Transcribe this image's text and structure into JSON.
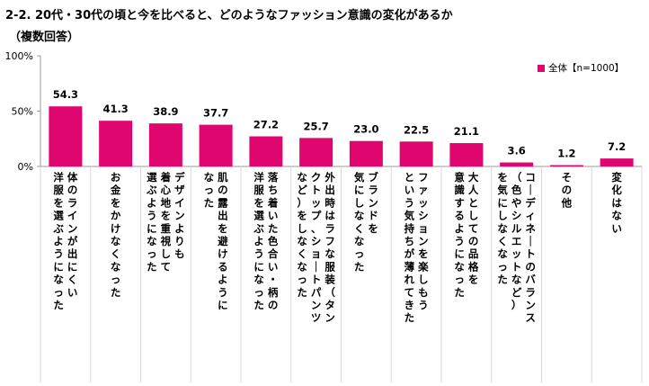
{
  "title": "2-2. 20代・30代の頃と今を比べると、どのようなファッション意識の変化があるか",
  "subtitle": "（複数回答）",
  "colors": {
    "bar": "#e0066f",
    "axis": "#999999",
    "grid": "#d9d9d9"
  },
  "chart_data": {
    "type": "bar",
    "ylim": [
      0,
      100
    ],
    "yticks": [
      {
        "value": 0,
        "label": "0%"
      },
      {
        "value": 50,
        "label": "50%"
      },
      {
        "value": 100,
        "label": "100%"
      }
    ],
    "legend": {
      "label": "全体【n=1000】",
      "position": "top-right"
    },
    "categories": [
      [
        "体のラインが出にくい",
        "洋服を選ぶようになった"
      ],
      [
        "お金をかけなくなった"
      ],
      [
        "デザインよりも",
        "着心地を重視して",
        "選ぶようになった"
      ],
      [
        "肌の露出を避けるように",
        "なった"
      ],
      [
        "落ち着いた色合い・柄の",
        "洋服を選ぶようになった"
      ],
      [
        "外出時はラフな服装（タン",
        "クトップ、ショートパンツ",
        "など）をしなくなった"
      ],
      [
        "ブランドを",
        "気にしなくなった"
      ],
      [
        "ファッションを楽しもう",
        "という気持ちが薄れてきた"
      ],
      [
        "大人としての品格を",
        "意識するようになった"
      ],
      [
        "コーディネートのバランス",
        "（色やシルエットなど）",
        "を気にしなくなった"
      ],
      [
        "その他"
      ],
      [
        "変化はない"
      ]
    ],
    "values": [
      54.3,
      41.3,
      38.9,
      37.7,
      27.2,
      25.7,
      23.0,
      22.5,
      21.1,
      3.6,
      1.2,
      7.2
    ],
    "value_labels": [
      "54.3",
      "41.3",
      "38.9",
      "37.7",
      "27.2",
      "25.7",
      "23.0",
      "22.5",
      "21.1",
      "3.6",
      "1.2",
      "7.2"
    ]
  }
}
